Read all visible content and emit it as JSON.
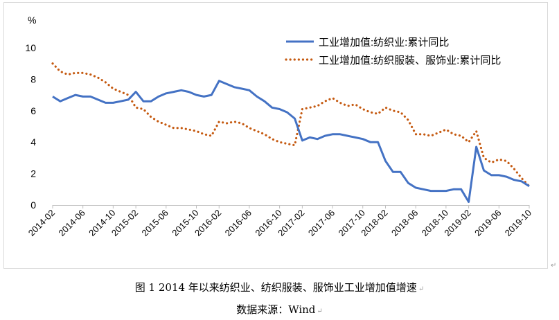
{
  "chart_data": {
    "type": "line",
    "unit_label": "%",
    "ylim": [
      0,
      10
    ],
    "yticks": [
      0,
      2,
      4,
      6,
      8,
      10
    ],
    "grid": false,
    "legend_position": "top-right",
    "x": [
      "2014-02",
      "2014-03",
      "2014-04",
      "2014-05",
      "2014-06",
      "2014-07",
      "2014-08",
      "2014-09",
      "2014-10",
      "2014-11",
      "2014-12",
      "2015-02",
      "2015-03",
      "2015-04",
      "2015-05",
      "2015-06",
      "2015-07",
      "2015-08",
      "2015-09",
      "2015-10",
      "2015-11",
      "2015-12",
      "2016-02",
      "2016-03",
      "2016-04",
      "2016-05",
      "2016-06",
      "2016-07",
      "2016-08",
      "2016-09",
      "2016-10",
      "2016-11",
      "2016-12",
      "2017-02",
      "2017-03",
      "2017-04",
      "2017-05",
      "2017-06",
      "2017-07",
      "2017-08",
      "2017-09",
      "2017-10",
      "2017-11",
      "2017-12",
      "2018-02",
      "2018-03",
      "2018-04",
      "2018-05",
      "2018-06",
      "2018-07",
      "2018-08",
      "2018-09",
      "2018-10",
      "2018-11",
      "2018-12",
      "2019-02",
      "2019-03",
      "2019-04",
      "2019-05",
      "2019-06",
      "2019-07",
      "2019-08",
      "2019-09",
      "2019-10"
    ],
    "xticks": [
      "2014-02",
      "2014-06",
      "2014-10",
      "2015-02",
      "2015-06",
      "2015-10",
      "2016-02",
      "2016-06",
      "2016-10",
      "2017-02",
      "2017-06",
      "2017-10",
      "2018-02",
      "2018-06",
      "2018-10",
      "2019-02",
      "2019-06",
      "2019-10"
    ],
    "series": [
      {
        "name": "工业增加值:纺织业:累计同比",
        "color": "#4472c4",
        "style": "solid",
        "values": [
          6.9,
          6.6,
          6.8,
          7.0,
          6.9,
          6.9,
          6.7,
          6.5,
          6.5,
          6.6,
          6.7,
          7.2,
          6.6,
          6.6,
          6.9,
          7.1,
          7.2,
          7.3,
          7.2,
          7.0,
          6.9,
          7.0,
          7.9,
          7.7,
          7.5,
          7.4,
          7.3,
          6.9,
          6.6,
          6.2,
          6.1,
          5.9,
          5.5,
          4.1,
          4.3,
          4.2,
          4.4,
          4.5,
          4.5,
          4.4,
          4.3,
          4.2,
          4.0,
          4.0,
          2.8,
          2.1,
          2.1,
          1.4,
          1.1,
          1.0,
          0.9,
          0.9,
          0.9,
          1.0,
          1.0,
          0.2,
          3.7,
          2.2,
          1.9,
          1.9,
          1.8,
          1.6,
          1.5,
          1.2
        ]
      },
      {
        "name": "工业增加值:纺织服装、服饰业:累计同比",
        "color": "#c55a11",
        "style": "dotted",
        "values": [
          9.0,
          8.5,
          8.3,
          8.4,
          8.4,
          8.3,
          8.1,
          7.8,
          7.4,
          7.2,
          7.0,
          6.2,
          6.1,
          5.6,
          5.3,
          5.1,
          4.9,
          4.9,
          4.8,
          4.7,
          4.5,
          4.4,
          5.3,
          5.2,
          5.3,
          5.2,
          4.9,
          4.7,
          4.5,
          4.2,
          4.0,
          3.9,
          3.8,
          6.1,
          6.2,
          6.3,
          6.6,
          6.8,
          6.5,
          6.3,
          6.4,
          6.1,
          5.9,
          5.8,
          6.2,
          6.0,
          5.9,
          5.4,
          4.5,
          4.5,
          4.4,
          4.6,
          4.8,
          4.5,
          4.4,
          4.0,
          4.7,
          3.0,
          2.7,
          2.9,
          2.8,
          2.3,
          1.7,
          1.2
        ]
      }
    ]
  },
  "captions": {
    "figure": "图 1  2014 年以来纺织业、纺织服装、服饰业工业增加值增速",
    "source": "数据来源：Wind"
  },
  "marks": {
    "paragraph": "↵",
    "frame": "↵"
  }
}
